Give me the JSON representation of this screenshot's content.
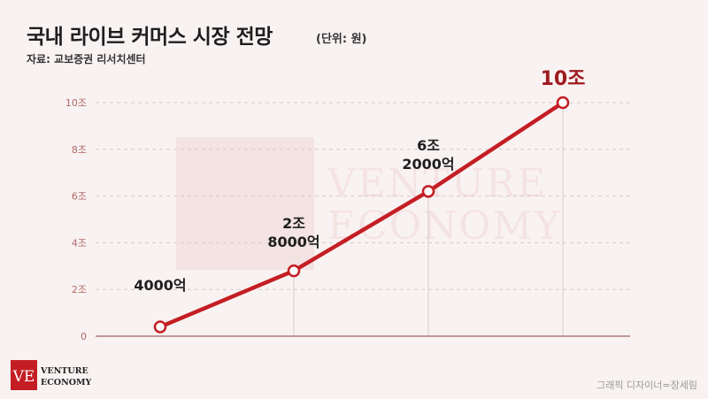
{
  "header": {
    "title": "국내 라이브 커머스 시장 전망",
    "unit": "(단위: 원)",
    "source": "자료: 교보증권 리서치센터"
  },
  "footer": {
    "credit": "그래픽 디자이너=장세림",
    "logo_text": [
      "VENTURE",
      "ECONOMY"
    ],
    "watermark_text": [
      "VENTURE",
      "ECONOMY"
    ]
  },
  "colors": {
    "line": "#c41e24",
    "highlight_label": "#9e1c21",
    "axis": "#b07878",
    "tick_text": "#b06565",
    "grid": "#d9c8c8",
    "background": "#f8f3f2",
    "logo": "#c41e24"
  },
  "chart_data": {
    "type": "line",
    "x": [
      "",
      "",
      "",
      ""
    ],
    "series": [
      {
        "values": [
          0.4,
          2.8,
          6.2,
          10
        ]
      }
    ],
    "data_labels": [
      {
        "lines": [
          "4000억"
        ],
        "highlight": false
      },
      {
        "lines": [
          "2조",
          "8000억"
        ],
        "highlight": false
      },
      {
        "lines": [
          "6조",
          "2000억"
        ],
        "highlight": false
      },
      {
        "lines": [
          "10조"
        ],
        "highlight": true
      }
    ],
    "ylim": [
      0,
      10
    ],
    "yticks": [
      {
        "value": 0,
        "label": "0"
      },
      {
        "value": 2,
        "label": "2조"
      },
      {
        "value": 4,
        "label": "4조"
      },
      {
        "value": 6,
        "label": "6조"
      },
      {
        "value": 8,
        "label": "8조"
      },
      {
        "value": 10,
        "label": "10조"
      }
    ],
    "grid": true,
    "title": "",
    "xlabel": "",
    "ylabel": ""
  }
}
